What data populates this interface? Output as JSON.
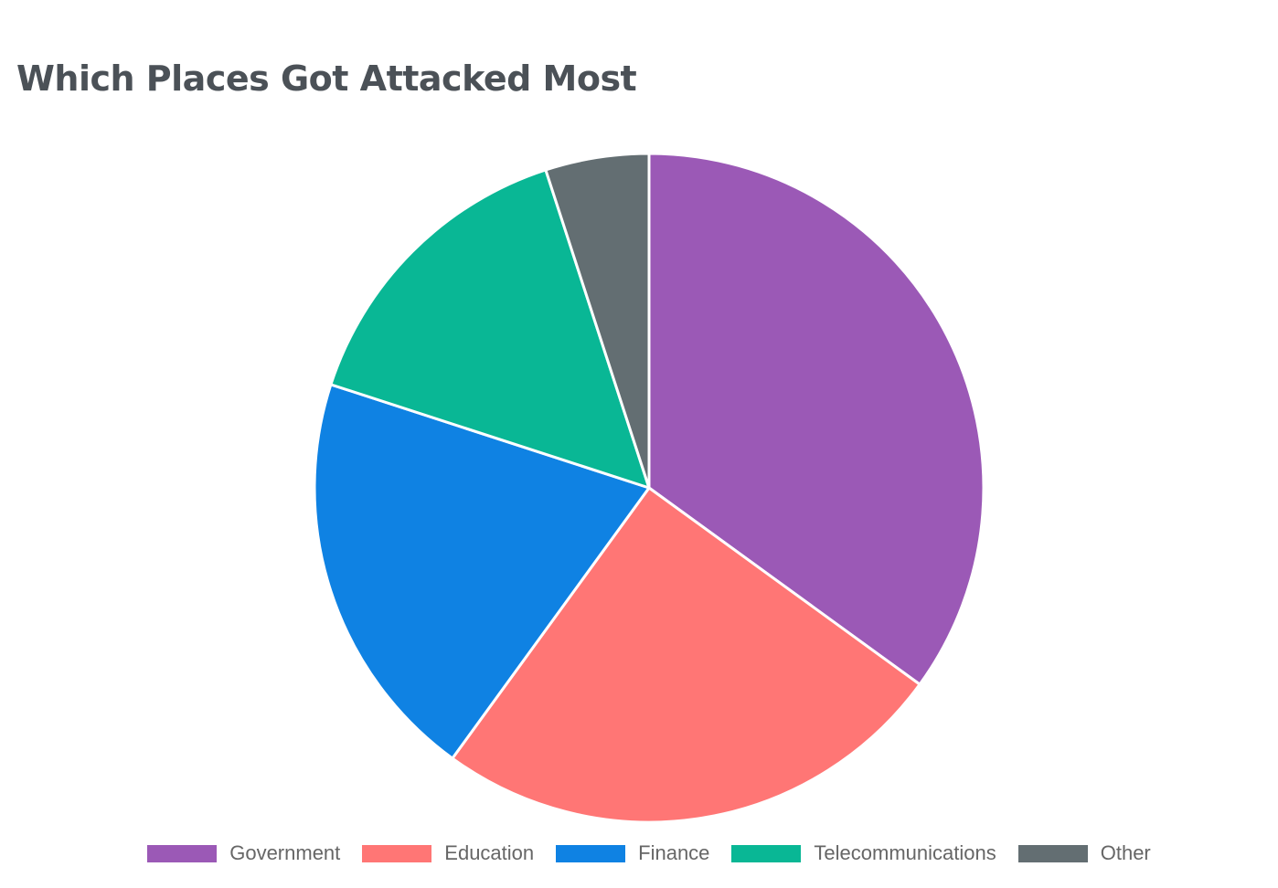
{
  "chart_data": {
    "type": "pie",
    "title": "Which Places Got Attacked Most",
    "categories": [
      "Government",
      "Education",
      "Finance",
      "Telecommunications",
      "Other"
    ],
    "values": [
      35,
      25,
      20,
      15,
      5
    ],
    "colors": [
      "#9b59b6",
      "#ff7675",
      "#0f82e3",
      "#09b795",
      "#636e72"
    ],
    "legend_position": "bottom",
    "start_angle": "top, clockwise"
  }
}
